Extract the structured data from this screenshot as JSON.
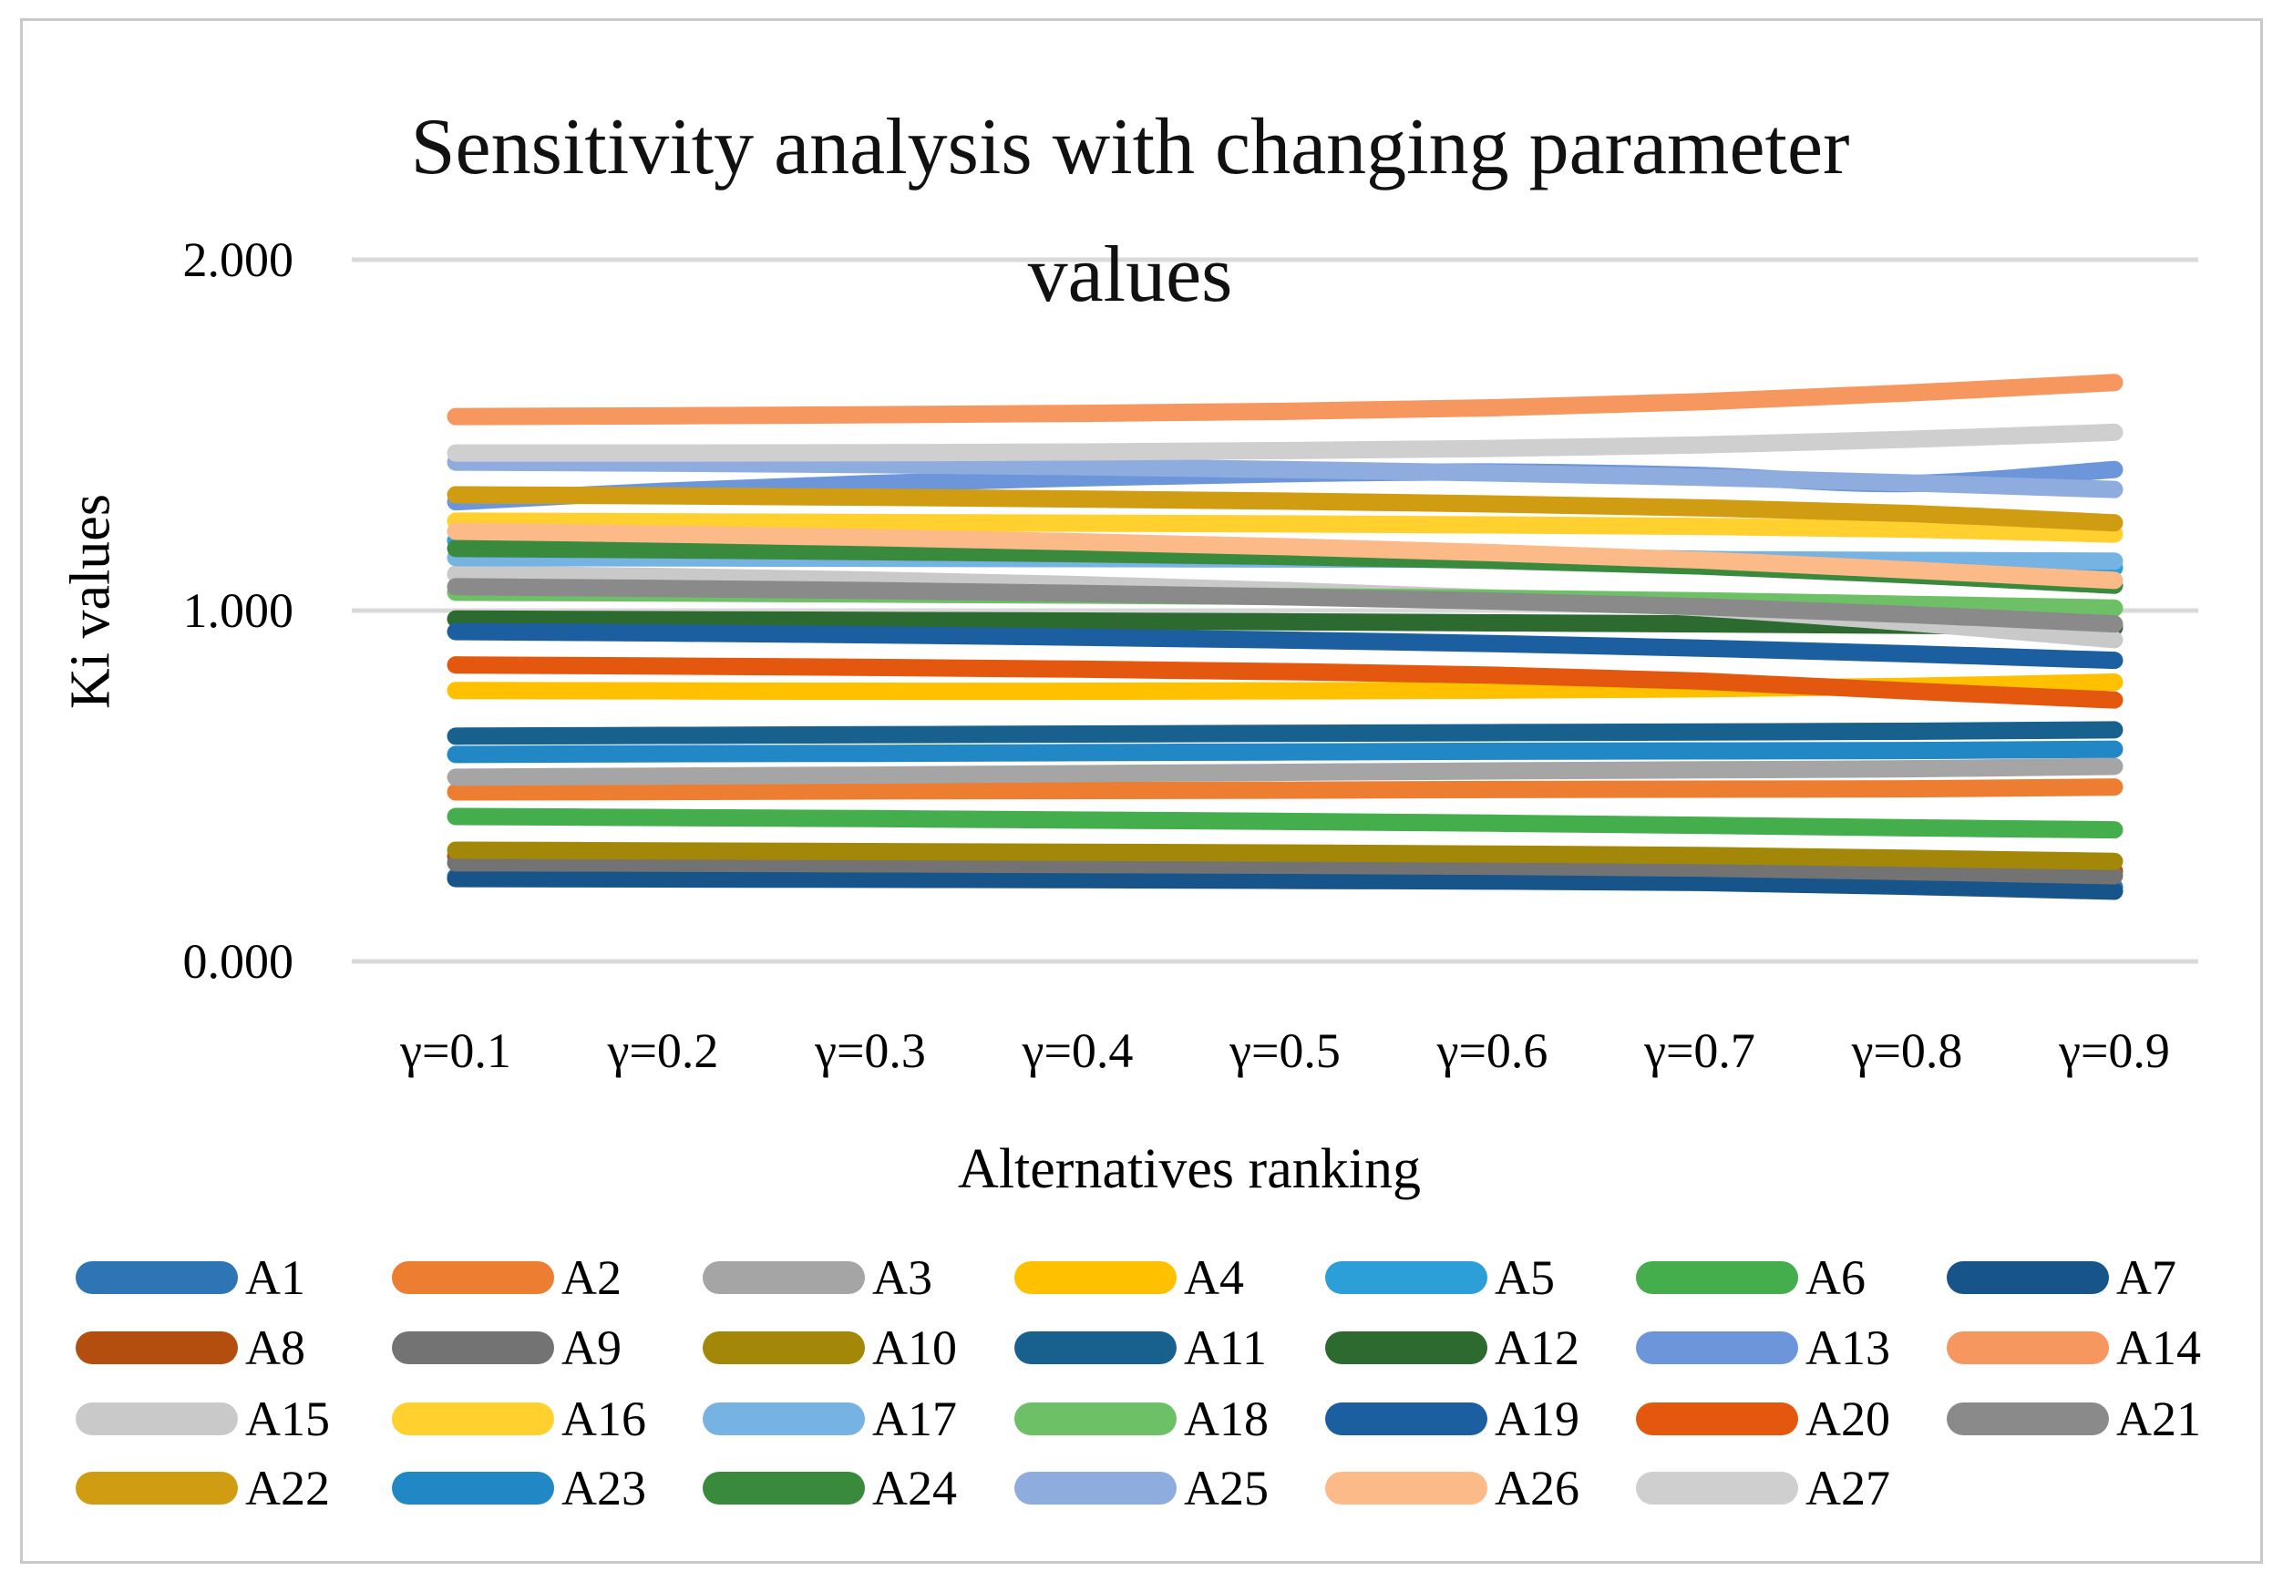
{
  "title": {
    "line1": "Sensitivity analysis with changing parameter",
    "line2": "values"
  },
  "y_axis": {
    "label": "Ki values",
    "ticks": [
      {
        "label": "2.000",
        "value": 2
      },
      {
        "label": "1.000",
        "value": 1
      },
      {
        "label": "0.000",
        "value": 0
      }
    ]
  },
  "x_axis": {
    "label": "Alternatives ranking"
  },
  "chart_data": {
    "type": "line",
    "title": "Sensitivity analysis with changing parameter values",
    "xlabel": "Alternatives ranking",
    "ylabel": "Ki values",
    "ylim": [
      0,
      2
    ],
    "grid": true,
    "legend_position": "bottom",
    "categories": [
      "γ=0.1",
      "γ=0.2",
      "γ=0.3",
      "γ=0.4",
      "γ=0.5",
      "γ=0.6",
      "γ=0.7",
      "γ=0.8",
      "γ=0.9"
    ],
    "series": [
      {
        "name": "A1",
        "color": "#2E75B6",
        "values": [
          0.242,
          0.241,
          0.24,
          0.239,
          0.237,
          0.235,
          0.231,
          0.223,
          0.212
        ]
      },
      {
        "name": "A2",
        "color": "#ED7D31",
        "values": [
          0.483,
          0.484,
          0.486,
          0.487,
          0.488,
          0.49,
          0.491,
          0.492,
          0.497
        ]
      },
      {
        "name": "A3",
        "color": "#A5A5A5",
        "values": [
          0.525,
          0.528,
          0.531,
          0.535,
          0.539,
          0.543,
          0.546,
          0.549,
          0.556
        ]
      },
      {
        "name": "A4",
        "color": "#FFC000",
        "values": [
          0.772,
          0.771,
          0.77,
          0.77,
          0.771,
          0.773,
          0.777,
          0.784,
          0.796
        ]
      },
      {
        "name": "A5",
        "color": "#2D9FD8",
        "values": [
          1.2,
          1.193,
          1.185,
          1.176,
          1.166,
          1.156,
          1.146,
          1.134,
          1.122
        ]
      },
      {
        "name": "A6",
        "color": "#44AD4C",
        "values": [
          0.413,
          0.41,
          0.407,
          0.403,
          0.399,
          0.394,
          0.388,
          0.381,
          0.375
        ]
      },
      {
        "name": "A7",
        "color": "#17548A",
        "values": [
          0.236,
          0.235,
          0.234,
          0.233,
          0.231,
          0.229,
          0.225,
          0.214,
          0.2
        ]
      },
      {
        "name": "A8",
        "color": "#B44E0E",
        "values": [
          0.3,
          0.298,
          0.296,
          0.294,
          0.291,
          0.288,
          0.283,
          0.272,
          0.257
        ]
      },
      {
        "name": "A9",
        "color": "#737373",
        "values": [
          0.281,
          0.28,
          0.278,
          0.276,
          0.274,
          0.271,
          0.266,
          0.256,
          0.244
        ]
      },
      {
        "name": "A10",
        "color": "#A38708",
        "values": [
          0.317,
          0.315,
          0.313,
          0.311,
          0.309,
          0.306,
          0.302,
          0.294,
          0.285
        ]
      },
      {
        "name": "A11",
        "color": "#18618F",
        "values": [
          0.642,
          0.644,
          0.646,
          0.648,
          0.65,
          0.652,
          0.654,
          0.656,
          0.66
        ]
      },
      {
        "name": "A12",
        "color": "#2D6A2F",
        "values": [
          0.976,
          0.974,
          0.972,
          0.97,
          0.968,
          0.965,
          0.962,
          0.958,
          0.952
        ]
      },
      {
        "name": "A13",
        "color": "#6C96D9",
        "values": [
          1.31,
          1.34,
          1.362,
          1.378,
          1.39,
          1.395,
          1.385,
          1.362,
          1.402
        ]
      },
      {
        "name": "A14",
        "color": "#F6975F",
        "values": [
          1.553,
          1.555,
          1.558,
          1.562,
          1.568,
          1.578,
          1.595,
          1.62,
          1.65
        ]
      },
      {
        "name": "A15",
        "color": "#C9C9C9",
        "values": [
          1.104,
          1.097,
          1.087,
          1.074,
          1.057,
          1.036,
          1.008,
          0.966,
          0.917
        ]
      },
      {
        "name": "A16",
        "color": "#FFD02E",
        "values": [
          1.255,
          1.253,
          1.251,
          1.249,
          1.247,
          1.244,
          1.24,
          1.232,
          1.218
        ]
      },
      {
        "name": "A17",
        "color": "#77B3E2",
        "values": [
          1.151,
          1.15,
          1.149,
          1.148,
          1.147,
          1.146,
          1.145,
          1.143,
          1.141
        ]
      },
      {
        "name": "A18",
        "color": "#6DC066",
        "values": [
          1.052,
          1.05,
          1.047,
          1.044,
          1.04,
          1.035,
          1.028,
          1.018,
          1.007
        ]
      },
      {
        "name": "A19",
        "color": "#1C5FA0",
        "values": [
          0.94,
          0.936,
          0.931,
          0.924,
          0.916,
          0.906,
          0.893,
          0.877,
          0.858
        ]
      },
      {
        "name": "A20",
        "color": "#E4570E",
        "values": [
          0.845,
          0.842,
          0.838,
          0.833,
          0.826,
          0.816,
          0.799,
          0.771,
          0.745
        ]
      },
      {
        "name": "A21",
        "color": "#8A8A8A",
        "values": [
          1.068,
          1.063,
          1.057,
          1.049,
          1.039,
          1.027,
          1.011,
          0.989,
          0.962
        ]
      },
      {
        "name": "A22",
        "color": "#D09D12",
        "values": [
          1.33,
          1.327,
          1.323,
          1.318,
          1.312,
          1.304,
          1.293,
          1.277,
          1.25
        ]
      },
      {
        "name": "A23",
        "color": "#2187C5",
        "values": [
          0.59,
          0.592,
          0.593,
          0.595,
          0.597,
          0.599,
          0.6,
          0.601,
          0.605
        ]
      },
      {
        "name": "A24",
        "color": "#3A8A3D",
        "values": [
          1.177,
          1.173,
          1.168,
          1.162,
          1.154,
          1.143,
          1.127,
          1.102,
          1.072
        ]
      },
      {
        "name": "A25",
        "color": "#8FACDE",
        "values": [
          1.423,
          1.42,
          1.416,
          1.41,
          1.402,
          1.392,
          1.38,
          1.364,
          1.345
        ]
      },
      {
        "name": "A26",
        "color": "#FBBA87",
        "values": [
          1.226,
          1.218,
          1.208,
          1.196,
          1.182,
          1.165,
          1.144,
          1.116,
          1.086
        ]
      },
      {
        "name": "A27",
        "color": "#CFCFCF",
        "values": [
          1.449,
          1.449,
          1.45,
          1.452,
          1.456,
          1.462,
          1.472,
          1.488,
          1.508
        ]
      }
    ]
  }
}
